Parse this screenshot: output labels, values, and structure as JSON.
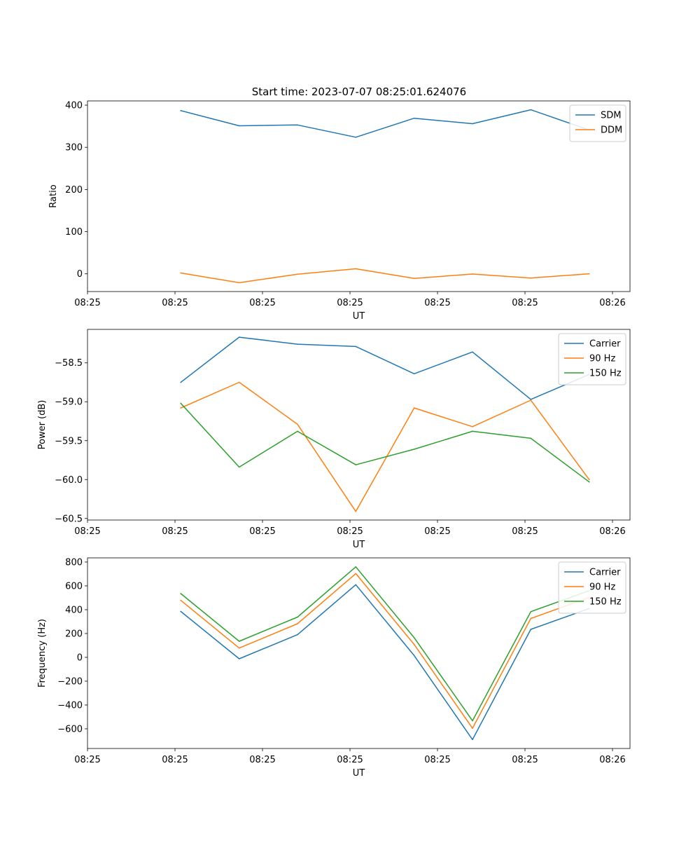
{
  "figure_title": "Start time: 2023-07-07 08:25:01.624076",
  "colors": {
    "blue": "#1f77b4",
    "orange": "#ff7f0e",
    "green": "#2ca02c"
  },
  "chart_data": [
    {
      "type": "line",
      "name": "ratio",
      "xlabel": "UT",
      "ylabel": "Ratio",
      "x": [
        1.6,
        2.6,
        3.6,
        4.6,
        5.6,
        6.6,
        7.6,
        8.6
      ],
      "xlim": [
        0,
        9.3
      ],
      "x_ticks": [
        0.0,
        1.5,
        3.0,
        4.5,
        6.0,
        7.5,
        9.0
      ],
      "x_tick_labels": [
        "08:25",
        "08:25",
        "08:25",
        "08:25",
        "08:25",
        "08:25",
        "08:26"
      ],
      "ylim": [
        -42,
        410
      ],
      "y_ticks": [
        0,
        100,
        200,
        300,
        400
      ],
      "y_tick_labels": [
        "0",
        "100",
        "200",
        "300",
        "400"
      ],
      "legend_position": "top-right",
      "series": [
        {
          "name": "SDM",
          "color": "#1f77b4",
          "values": [
            387,
            351,
            353,
            324,
            369,
            356,
            389,
            341
          ]
        },
        {
          "name": "DDM",
          "color": "#ff7f0e",
          "values": [
            2,
            -21,
            -1,
            12,
            -11,
            -0.5,
            -10,
            0
          ]
        }
      ]
    },
    {
      "type": "line",
      "name": "power",
      "xlabel": "UT",
      "ylabel": "Power (dB)",
      "x": [
        1.6,
        2.6,
        3.6,
        4.6,
        5.6,
        6.6,
        7.6,
        8.6
      ],
      "xlim": [
        0,
        9.3
      ],
      "x_ticks": [
        0.0,
        1.5,
        3.0,
        4.5,
        6.0,
        7.5,
        9.0
      ],
      "x_tick_labels": [
        "08:25",
        "08:25",
        "08:25",
        "08:25",
        "08:25",
        "08:25",
        "08:26"
      ],
      "ylim": [
        -60.52,
        -58.07
      ],
      "y_ticks": [
        -60.5,
        -60.0,
        -59.5,
        -59.0,
        -58.5
      ],
      "y_tick_labels": [
        "−60.5",
        "−60.0",
        "−59.5",
        "−59.0",
        "−58.5"
      ],
      "legend_position": "top-right",
      "series": [
        {
          "name": "Carrier",
          "color": "#1f77b4",
          "values": [
            -58.75,
            -58.17,
            -58.26,
            -58.29,
            -58.64,
            -58.36,
            -58.97,
            -58.65
          ]
        },
        {
          "name": "90 Hz",
          "color": "#ff7f0e",
          "values": [
            -59.08,
            -58.75,
            -59.29,
            -60.41,
            -59.08,
            -59.32,
            -58.98,
            -60.0
          ]
        },
        {
          "name": "150 Hz",
          "color": "#2ca02c",
          "values": [
            -59.02,
            -59.84,
            -59.38,
            -59.81,
            -59.61,
            -59.38,
            -59.47,
            -60.03
          ]
        }
      ]
    },
    {
      "type": "line",
      "name": "frequency",
      "xlabel": "UT",
      "ylabel": "Frequency (Hz)",
      "x": [
        1.6,
        2.6,
        3.6,
        4.6,
        5.6,
        6.6,
        7.6,
        8.6
      ],
      "xlim": [
        0,
        9.3
      ],
      "x_ticks": [
        0.0,
        1.5,
        3.0,
        4.5,
        6.0,
        7.5,
        9.0
      ],
      "x_tick_labels": [
        "08:25",
        "08:25",
        "08:25",
        "08:25",
        "08:25",
        "08:25",
        "08:26"
      ],
      "ylim": [
        -765,
        835
      ],
      "y_ticks": [
        -600,
        -400,
        -200,
        0,
        200,
        400,
        600,
        800
      ],
      "y_tick_labels": [
        "−600",
        "−400",
        "−200",
        "0",
        "200",
        "400",
        "600",
        "800"
      ],
      "legend_position": "top-right",
      "series": [
        {
          "name": "Carrier",
          "color": "#1f77b4",
          "values": [
            385,
            -12,
            190,
            610,
            15,
            -690,
            235,
            410
          ]
        },
        {
          "name": "90 Hz",
          "color": "#ff7f0e",
          "values": [
            478,
            78,
            282,
            703,
            108,
            -595,
            326,
            503
          ]
        },
        {
          "name": "150 Hz",
          "color": "#2ca02c",
          "values": [
            535,
            135,
            338,
            760,
            165,
            -532,
            383,
            560
          ]
        }
      ]
    }
  ]
}
